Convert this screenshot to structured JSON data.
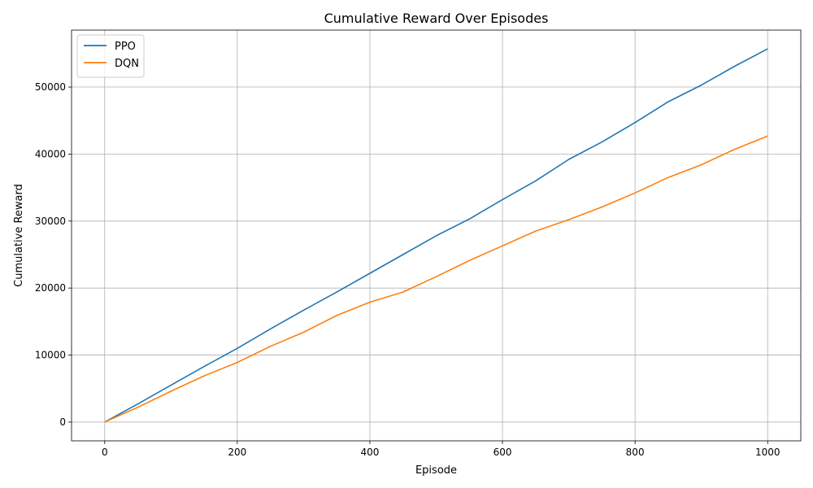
{
  "chart_data": {
    "type": "line",
    "title": "Cumulative Reward Over Episodes",
    "xlabel": "Episode",
    "ylabel": "Cumulative Reward",
    "xlim": [
      -50,
      1050
    ],
    "ylim": [
      -2800,
      58500
    ],
    "xticks": [
      0,
      200,
      400,
      600,
      800,
      1000
    ],
    "yticks": [
      0,
      10000,
      20000,
      30000,
      40000,
      50000
    ],
    "grid": true,
    "legend_position": "top-left",
    "series": [
      {
        "name": "PPO",
        "color": "#1f77b4",
        "x": [
          0,
          50,
          100,
          150,
          200,
          250,
          300,
          350,
          400,
          450,
          500,
          550,
          600,
          650,
          700,
          750,
          800,
          850,
          900,
          950,
          1000
        ],
        "y": [
          0,
          2700,
          5500,
          8300,
          11000,
          13900,
          16700,
          19400,
          22200,
          25000,
          27800,
          30300,
          33200,
          36000,
          39200,
          41800,
          44700,
          47800,
          50300,
          53100,
          55700
        ]
      },
      {
        "name": "DQN",
        "color": "#ff7f0e",
        "x": [
          0,
          50,
          100,
          150,
          200,
          250,
          300,
          350,
          400,
          450,
          500,
          550,
          600,
          650,
          700,
          750,
          800,
          850,
          900,
          950,
          1000
        ],
        "y": [
          0,
          2200,
          4600,
          6900,
          8900,
          11300,
          13400,
          15900,
          17900,
          19400,
          21700,
          24100,
          26300,
          28500,
          30200,
          32100,
          34200,
          36500,
          38400,
          40700,
          42700
        ]
      }
    ]
  }
}
